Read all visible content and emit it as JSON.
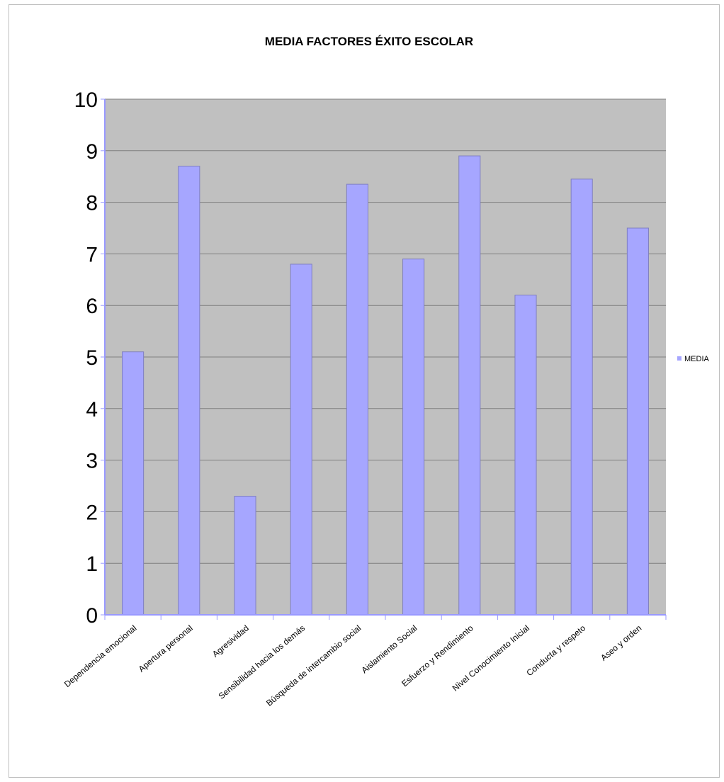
{
  "chart_data": {
    "type": "bar",
    "title": "MEDIA FACTORES ÉXITO ESCOLAR",
    "categories": [
      "Dependencia emocional",
      "Apertura personal",
      "Agresividad",
      "Sensibilidad hacia los demás",
      "Búsqueda de intercambio social",
      "Aislamiento Social",
      "Esfuerzo y Rendimiento",
      "Nivel Conocimiento Inicial",
      "Conducta y respeto",
      "Aseo y orden"
    ],
    "series": [
      {
        "name": "MEDIA",
        "values": [
          5.1,
          8.7,
          2.3,
          6.8,
          8.35,
          6.9,
          8.9,
          6.2,
          8.45,
          7.5
        ],
        "color": "#a6a6ff"
      }
    ],
    "ylim": [
      0,
      10
    ],
    "yticks": [
      "0",
      "1",
      "2",
      "3",
      "4",
      "5",
      "6",
      "7",
      "8",
      "9",
      "10"
    ],
    "grid": true,
    "legend_position": "right",
    "colors": {
      "plot_background": "#c0c0c0",
      "gridline": "#7f7f7f",
      "bar": "#a6a6ff",
      "bar_edge": "#7f7fbf"
    }
  }
}
